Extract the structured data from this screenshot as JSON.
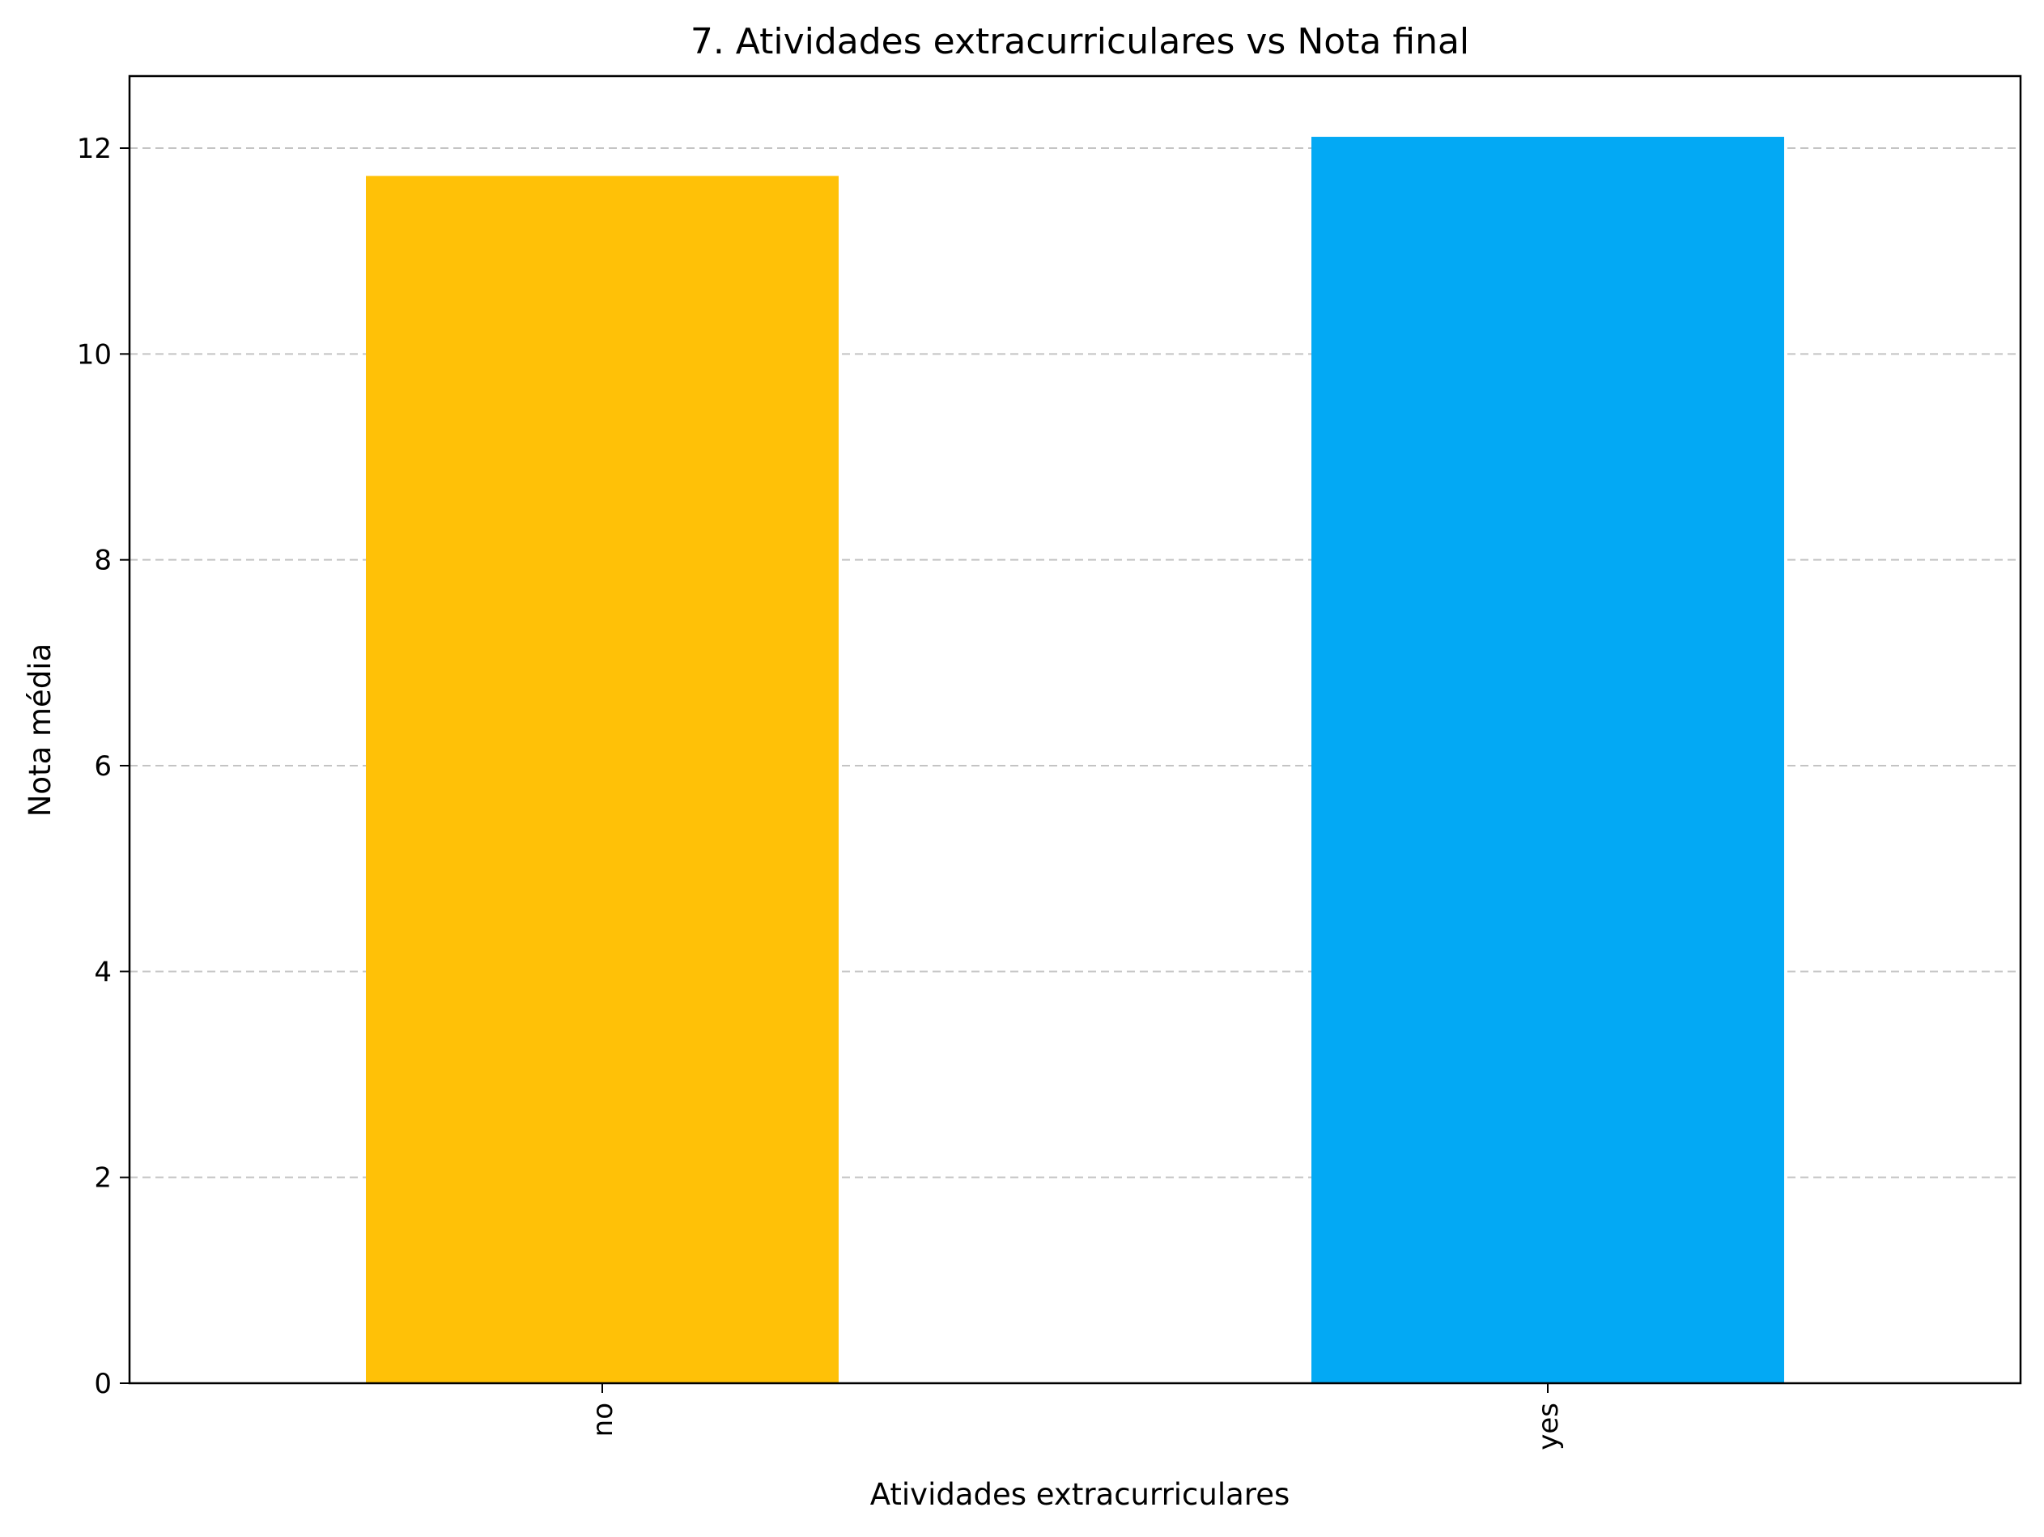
{
  "chart_data": {
    "type": "bar",
    "title": "7. Atividades extracurriculares vs Nota final",
    "xlabel": "Atividades extracurriculares",
    "ylabel": "Nota média",
    "categories": [
      "no",
      "yes"
    ],
    "values": [
      11.73,
      12.11
    ],
    "colors": [
      "#FFC107",
      "#03A9F4"
    ],
    "ylim": [
      0,
      12.7
    ],
    "yticks": [
      0,
      2,
      4,
      6,
      8,
      10,
      12
    ],
    "grid": "y-dashed",
    "legend": "none",
    "xtick_rotation": "vertical"
  }
}
